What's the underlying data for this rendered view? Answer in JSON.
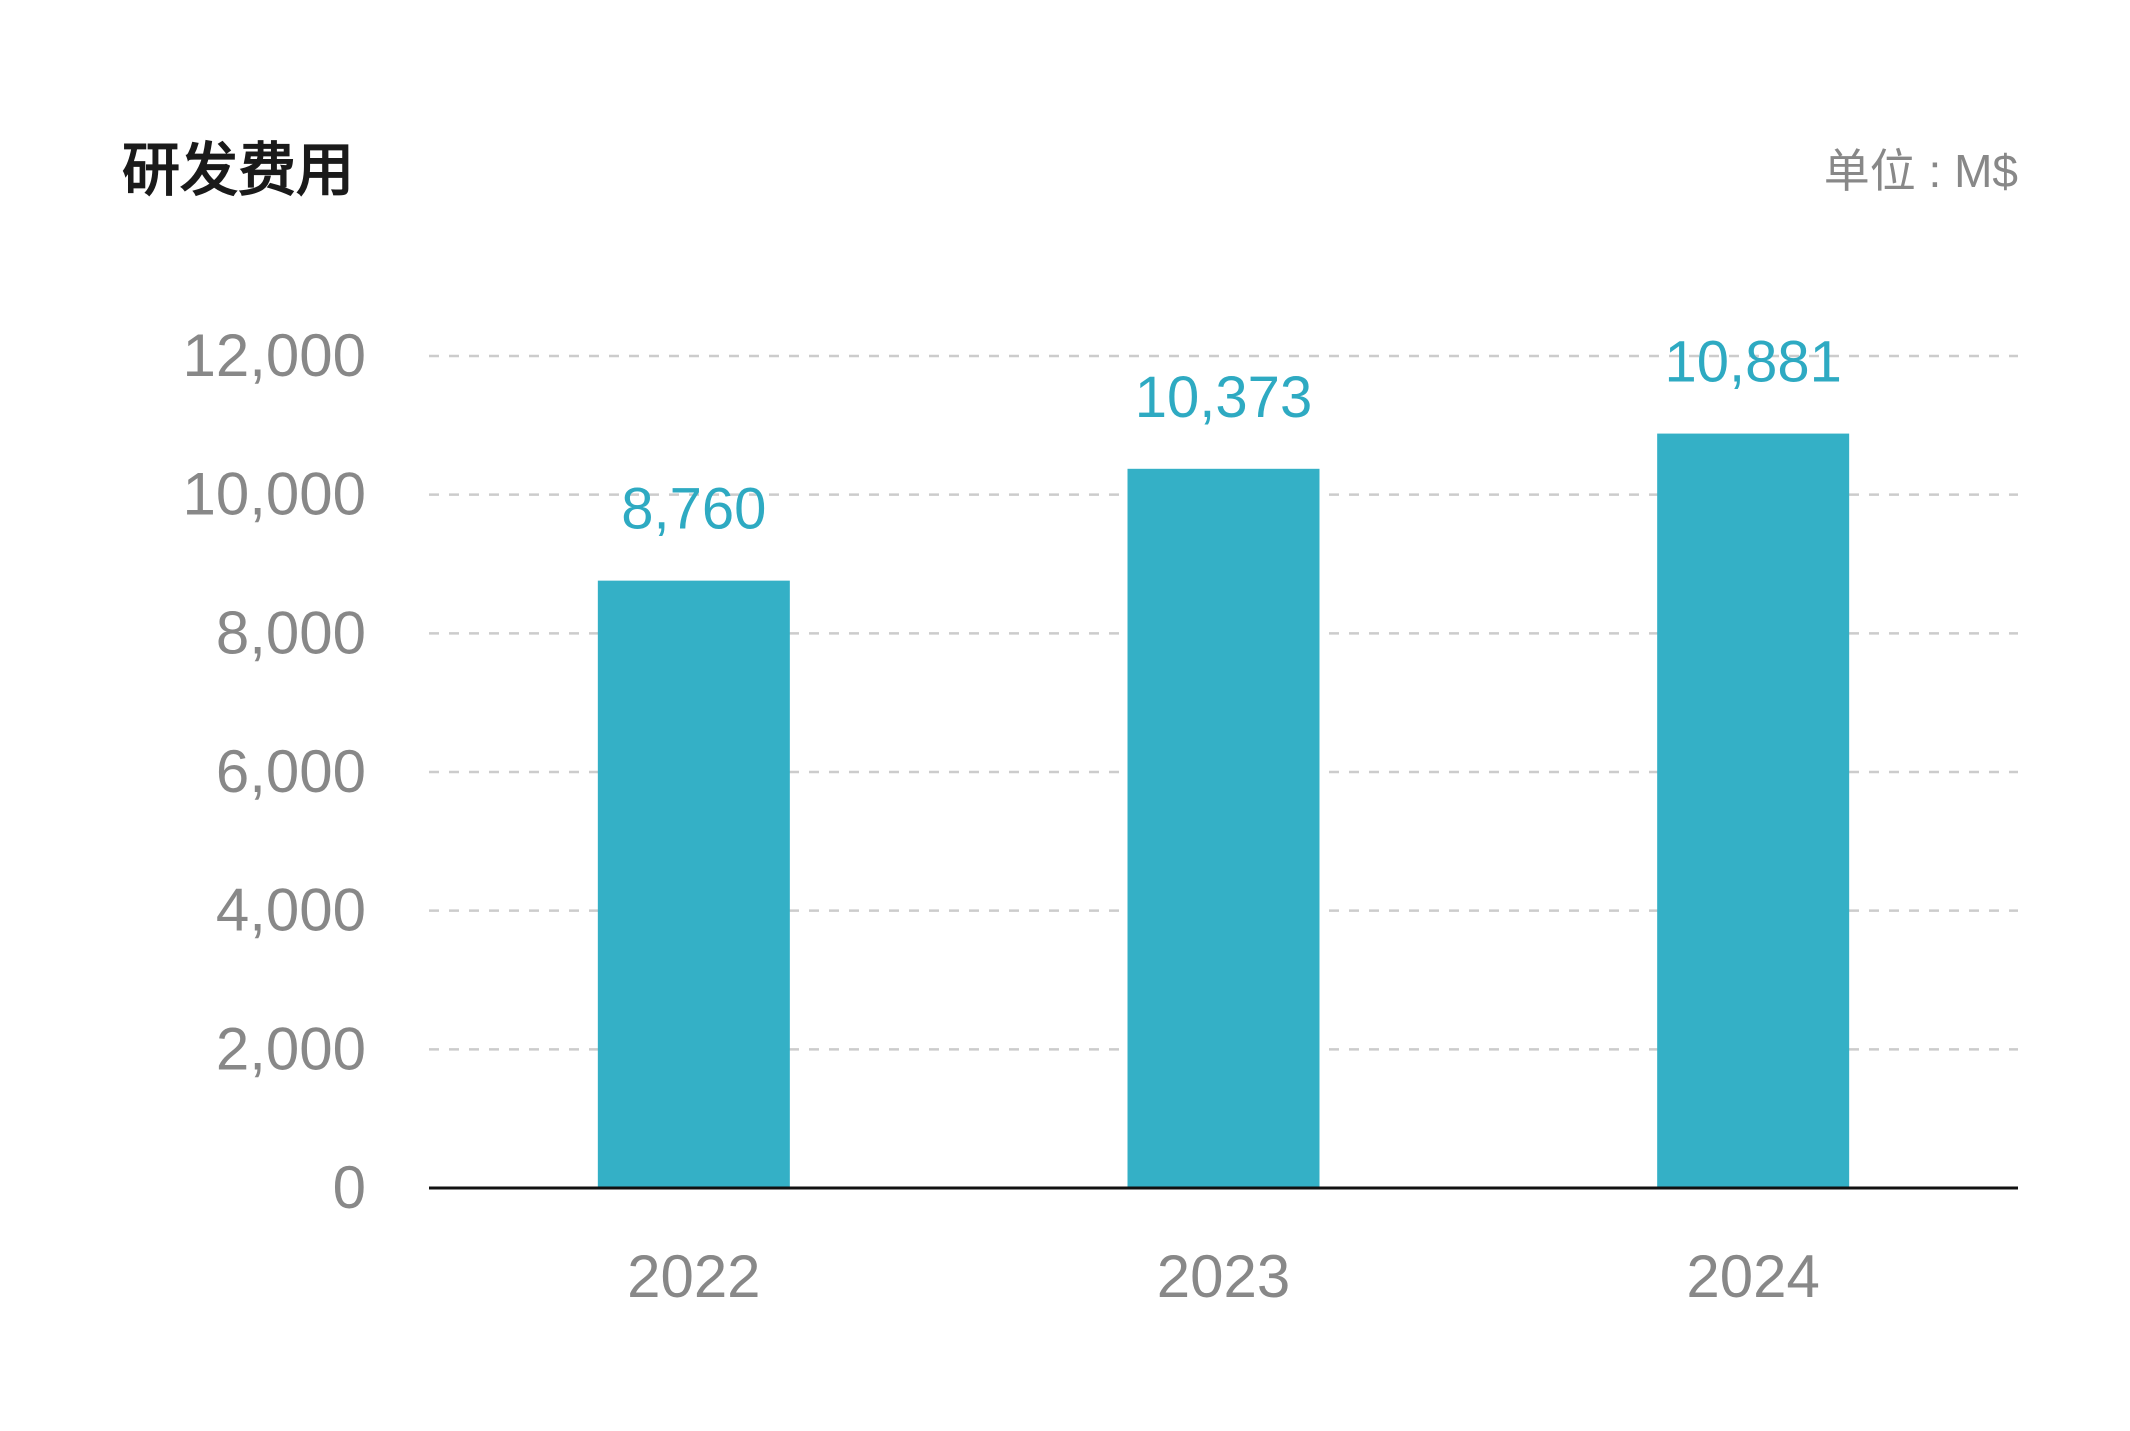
{
  "chart_data": {
    "type": "bar",
    "title": "研发费用",
    "unit_label": "单位 : M$",
    "categories": [
      "2022",
      "2023",
      "2024"
    ],
    "values": [
      8760,
      10373,
      10881
    ],
    "value_labels": [
      "8,760",
      "10,373",
      "10,881"
    ],
    "ylim": [
      0,
      12000
    ],
    "yticks": [
      0,
      2000,
      4000,
      6000,
      8000,
      10000,
      12000
    ],
    "ytick_labels": [
      "0",
      "2,000",
      "4,000",
      "6,000",
      "8,000",
      "10,000",
      "12,000"
    ],
    "grid": "horizontal dashed",
    "xlabel": "",
    "ylabel": "",
    "colors": {
      "bar": "#34b0c6",
      "value_label": "#2eaac2",
      "axis_text": "#888888",
      "grid": "#cccccc",
      "axis": "#111111",
      "title": "#1a1a1a"
    }
  }
}
